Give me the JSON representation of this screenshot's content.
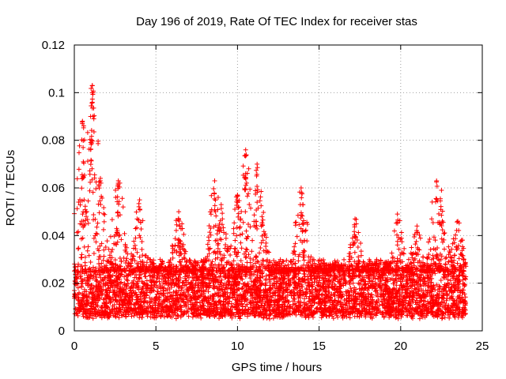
{
  "chart_data": {
    "type": "scatter",
    "title": "Day 196 of 2019, Rate Of TEC Index for receiver stas",
    "xlabel": "GPS time / hours",
    "ylabel": "ROTI / TECUs",
    "xlim": [
      0,
      25
    ],
    "ylim": [
      0,
      0.12
    ],
    "xticks": [
      "0",
      "5",
      "10",
      "15",
      "20",
      "25"
    ],
    "yticks": [
      "0",
      "0.02",
      "0.04",
      "0.06",
      "0.08",
      "0.1",
      "0.12"
    ],
    "grid": true,
    "marker": "+",
    "color": "#ff0000",
    "data_x_range": [
      0,
      24
    ],
    "baseline_band": [
      0.005,
      0.025
    ],
    "series": [
      {
        "name": "ROTI",
        "peaks": [
          {
            "x": 0.5,
            "y": 0.088
          },
          {
            "x": 0.55,
            "y": 0.071
          },
          {
            "x": 0.6,
            "y": 0.055
          },
          {
            "x": 1.0,
            "y": 0.09
          },
          {
            "x": 1.05,
            "y": 0.08
          },
          {
            "x": 1.1,
            "y": 0.103
          },
          {
            "x": 1.15,
            "y": 0.1
          },
          {
            "x": 1.6,
            "y": 0.064
          },
          {
            "x": 2.7,
            "y": 0.063
          },
          {
            "x": 4.0,
            "y": 0.055
          },
          {
            "x": 6.4,
            "y": 0.05
          },
          {
            "x": 8.6,
            "y": 0.063
          },
          {
            "x": 9.0,
            "y": 0.053
          },
          {
            "x": 10.0,
            "y": 0.057
          },
          {
            "x": 10.5,
            "y": 0.076
          },
          {
            "x": 10.5,
            "y": 0.066
          },
          {
            "x": 11.2,
            "y": 0.07
          },
          {
            "x": 11.2,
            "y": 0.054
          },
          {
            "x": 11.5,
            "y": 0.048
          },
          {
            "x": 13.9,
            "y": 0.06
          },
          {
            "x": 14.0,
            "y": 0.053
          },
          {
            "x": 17.2,
            "y": 0.047
          },
          {
            "x": 19.8,
            "y": 0.049
          },
          {
            "x": 21.0,
            "y": 0.044
          },
          {
            "x": 22.2,
            "y": 0.063
          },
          {
            "x": 22.5,
            "y": 0.059
          },
          {
            "x": 23.5,
            "y": 0.046
          }
        ]
      }
    ]
  }
}
